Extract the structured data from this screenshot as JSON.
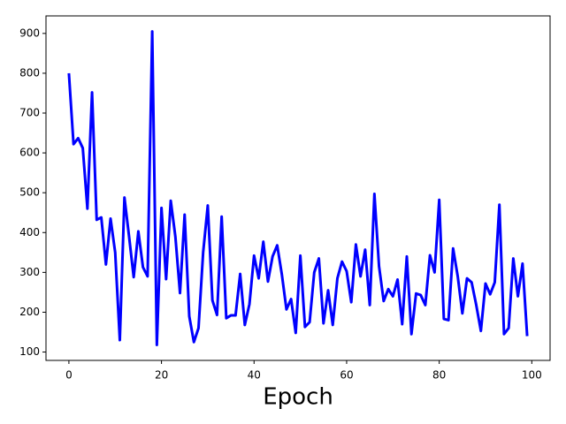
{
  "chart_data": {
    "type": "line",
    "xlabel": "Epoch",
    "x": [
      0,
      1,
      2,
      3,
      4,
      5,
      6,
      7,
      8,
      9,
      10,
      11,
      12,
      13,
      14,
      15,
      16,
      17,
      18,
      19,
      20,
      21,
      22,
      23,
      24,
      25,
      26,
      27,
      28,
      29,
      30,
      31,
      32,
      33,
      34,
      35,
      36,
      37,
      38,
      39,
      40,
      41,
      42,
      43,
      44,
      45,
      46,
      47,
      48,
      49,
      50,
      51,
      52,
      53,
      54,
      55,
      56,
      57,
      58,
      59,
      60,
      61,
      62,
      63,
      64,
      65,
      66,
      67,
      68,
      69,
      70,
      71,
      72,
      73,
      74,
      75,
      76,
      77,
      78,
      79,
      80,
      81,
      82,
      83,
      84,
      85,
      86,
      87,
      88,
      89,
      90,
      91,
      92,
      93,
      94,
      95,
      96,
      97,
      98,
      99
    ],
    "series": [
      {
        "color": "#0000ff",
        "values": [
          800,
          622,
          637,
          612,
          460,
          752,
          432,
          438,
          320,
          435,
          350,
          130,
          488,
          390,
          288,
          403,
          313,
          290,
          905,
          118,
          462,
          283,
          480,
          390,
          248,
          445,
          190,
          125,
          160,
          350,
          468,
          230,
          193,
          440,
          185,
          192,
          192,
          296,
          168,
          220,
          342,
          285,
          377,
          277,
          340,
          368,
          295,
          207,
          233,
          148,
          342,
          163,
          175,
          300,
          335,
          172,
          255,
          168,
          285,
          327,
          303,
          225,
          370,
          290,
          357,
          218,
          497,
          315,
          228,
          258,
          240,
          282,
          170,
          340,
          145,
          247,
          243,
          218,
          343,
          300,
          482,
          183,
          180,
          360,
          290,
          197,
          285,
          275,
          218,
          153,
          272,
          245,
          275,
          470,
          145,
          160,
          335,
          240,
          322,
          140
        ]
      }
    ],
    "xlim": [
      -4.95,
      103.95
    ],
    "ylim": [
      79,
      944
    ],
    "xticks": [
      0,
      20,
      40,
      60,
      80,
      100
    ],
    "yticks": [
      100,
      200,
      300,
      400,
      500,
      600,
      700,
      800,
      900
    ]
  }
}
